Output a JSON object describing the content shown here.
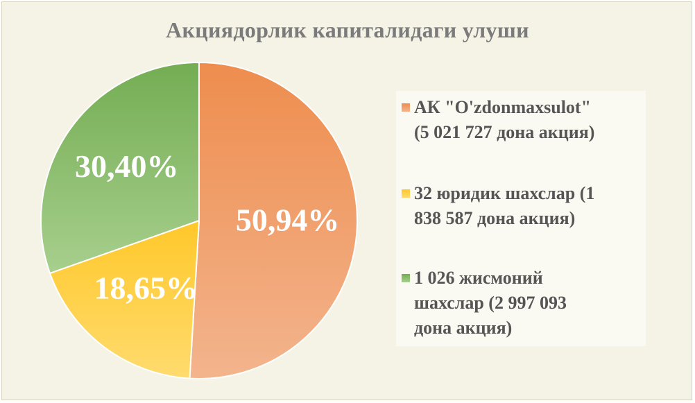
{
  "chart_data": {
    "type": "pie",
    "title": "Акциядорлик капиталидаги улуши",
    "slices": [
      {
        "label": "АК \"O'zdonmaxsulot\" (5 021 727 дона акция)",
        "value": 50.94,
        "display": "50,94%",
        "color": "#ee8d4e",
        "color_light": "#f3b48d"
      },
      {
        "label": "32 юридик шахслар (1 838 587 дона акция)",
        "value": 18.65,
        "display": "18,65%",
        "color": "#ffc82a",
        "color_light": "#ffdb6e"
      },
      {
        "label": "1 026 жисмоний шахслар (2 997 093 дона акция)",
        "value": 30.4,
        "display": "30,40%",
        "color": "#74ad53",
        "color_light": "#a7cf8d"
      }
    ],
    "legend_position": "right"
  },
  "legend": {
    "items": [
      {
        "lines": [
          "АК \"O'zdonmaxsulot\"",
          "(5 021 727 дона акция)"
        ]
      },
      {
        "lines": [
          "32 юридик шахслар (1",
          "838 587 дона акция)"
        ]
      },
      {
        "lines": [
          "1 026 жисмоний",
          "шахслар (2 997 093",
          "дона акция)"
        ]
      }
    ]
  }
}
